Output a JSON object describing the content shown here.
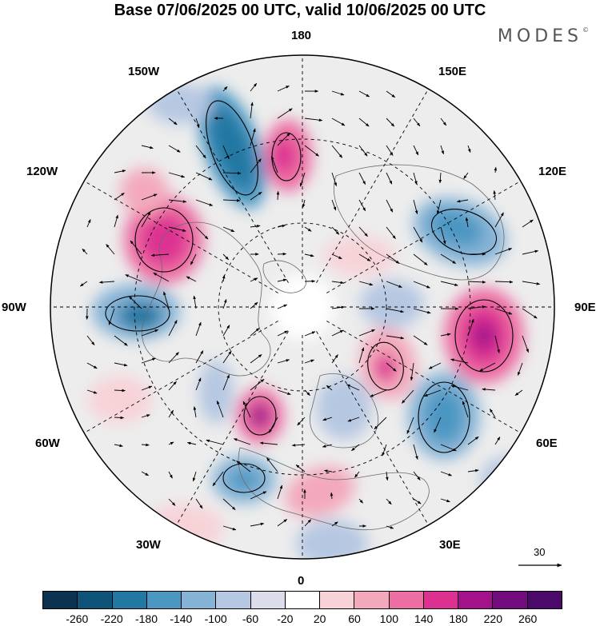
{
  "header": {
    "title": "Base 07/06/2025 00 UTC, valid 10/06/2025 00 UTC",
    "brand": "MODES",
    "brand_mark": "©"
  },
  "map": {
    "projection": "north polar stereographic",
    "labels": {
      "top": "180",
      "bottom": "0",
      "left": "90W",
      "right": "90E",
      "ul1": "150W",
      "ul2": "120W",
      "ur1": "150E",
      "ur2": "120E",
      "ll1": "60W",
      "ll2": "30W",
      "lr1": "60E",
      "lr2": "30E"
    },
    "reference_vector": "30"
  },
  "colorbar": {
    "ticks": [
      "-260",
      "-220",
      "-180",
      "-140",
      "-100",
      "-60",
      "-20",
      "20",
      "60",
      "100",
      "140",
      "180",
      "220",
      "260"
    ],
    "colors": [
      "#0b3350",
      "#0e5479",
      "#2178a3",
      "#4c97c2",
      "#85b3d6",
      "#b6c7e2",
      "#dcddeb",
      "#ffffff",
      "#f7d3d8",
      "#f3a9bb",
      "#ec6ea3",
      "#dd3192",
      "#a4128b",
      "#730c7e",
      "#4b0a6a"
    ]
  }
}
